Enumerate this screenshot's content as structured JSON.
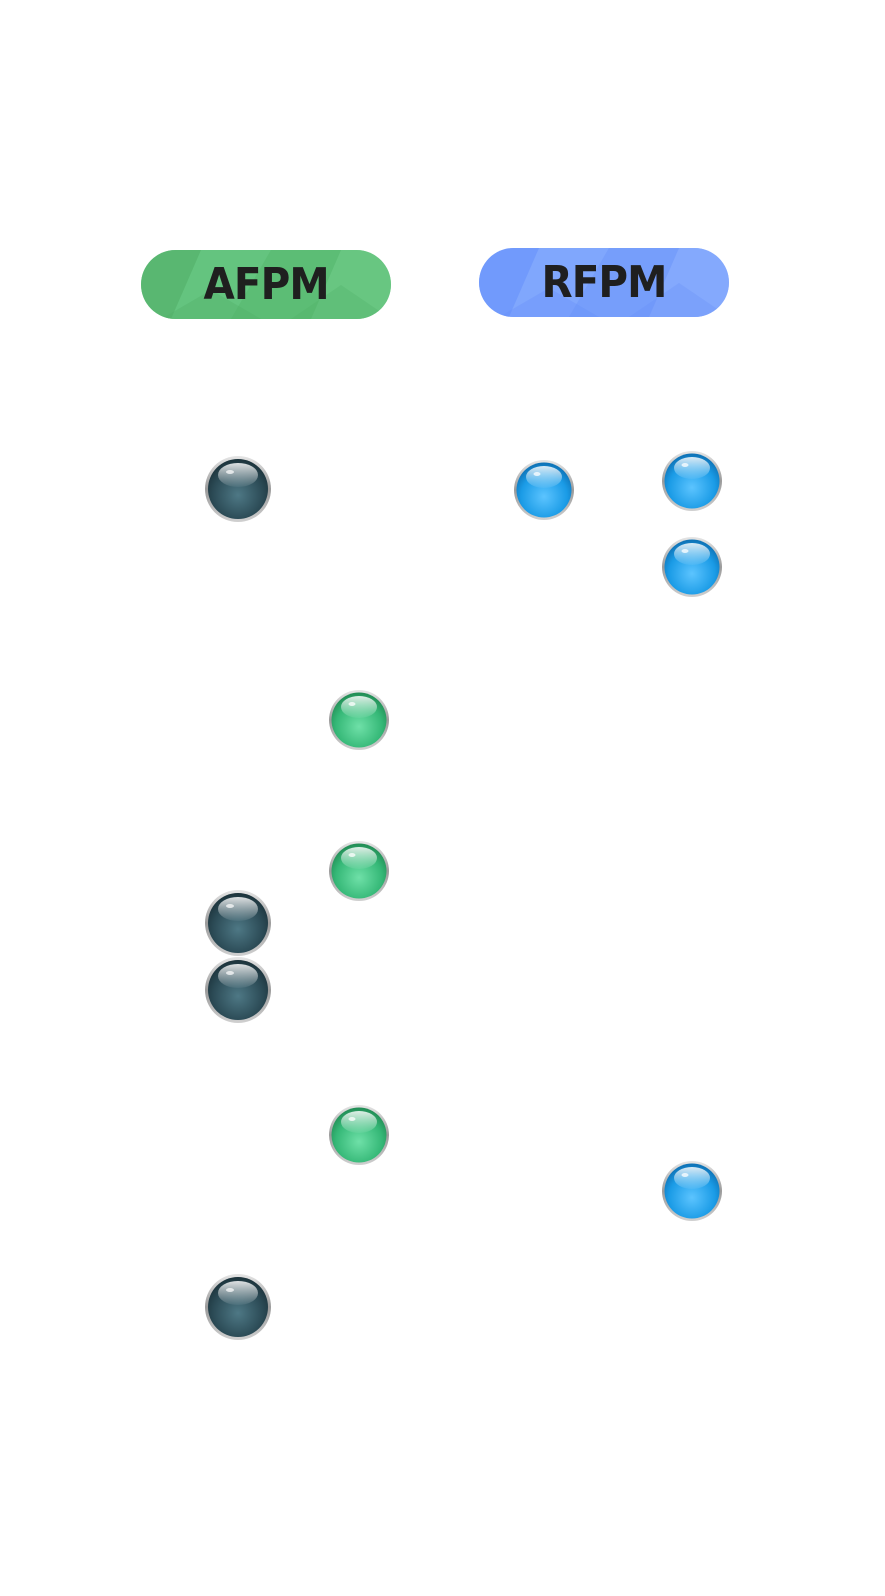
{
  "labels": {
    "afpm": "AFPM",
    "rfpm": "RFPM"
  },
  "colors": {
    "afpm_pill": "#5fbf78",
    "rfpm_pill": "#7ba2fc",
    "dark_ball": "#2e4f5a",
    "green_ball": "#3cc07f",
    "blue_ball": "#1aa0e8",
    "label_text": "#1f1f1f"
  },
  "balls": {
    "dark_count": 4,
    "green_count": 3,
    "blue_count": 4
  }
}
